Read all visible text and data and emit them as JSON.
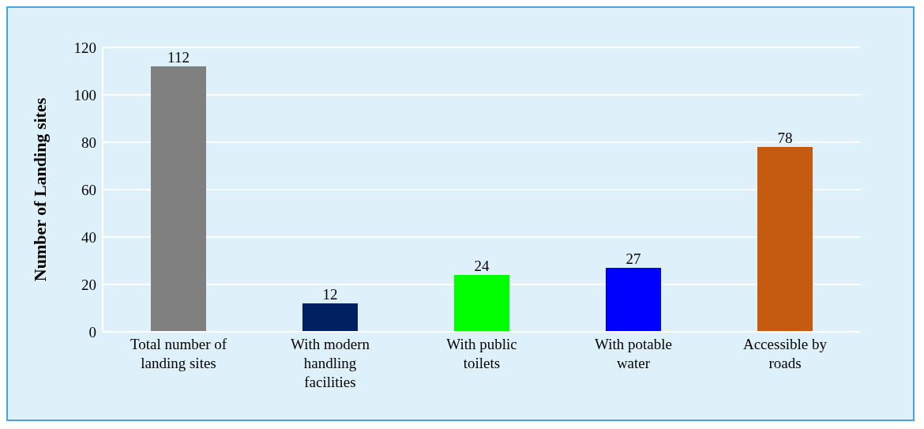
{
  "chart_data": {
    "type": "bar",
    "ylabel": "Number of Landing sites",
    "categories": [
      "Total number of landing sites",
      "With modern handling facilities",
      "With public toilets",
      "With potable water",
      "Accessible by roads"
    ],
    "values": [
      112,
      12,
      24,
      27,
      78
    ],
    "colors": [
      "#808080",
      "#002060",
      "#00ff00",
      "#0000ff",
      "#c55a11"
    ],
    "ylim": [
      0,
      120
    ],
    "yticks": [
      0,
      20,
      40,
      60,
      80,
      100,
      120
    ],
    "grid": "y",
    "data_labels": true
  }
}
